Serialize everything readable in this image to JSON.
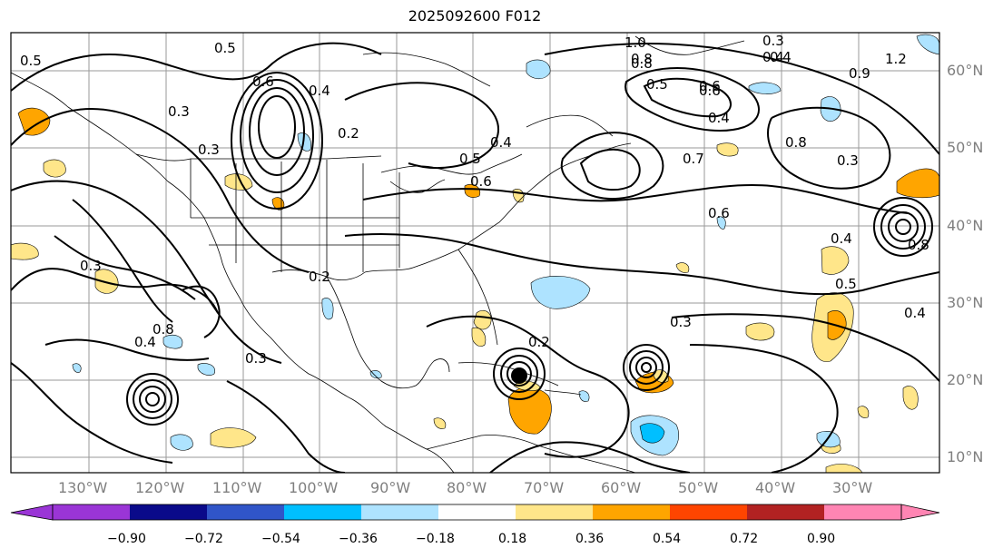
{
  "title": "2025092600 F012",
  "lon_labels": [
    "130°W",
    "120°W",
    "110°W",
    "100°W",
    "90°W",
    "80°W",
    "70°W",
    "60°W",
    "50°W",
    "40°W",
    "30°W"
  ],
  "lat_labels": [
    "60°N",
    "50°N",
    "40°N",
    "30°N",
    "20°N",
    "10°N"
  ],
  "colorbar": {
    "tick_labels": [
      "−0.90",
      "−0.72",
      "−0.54",
      "−0.36",
      "−0.18",
      "0.18",
      "0.36",
      "0.54",
      "0.72",
      "0.90"
    ],
    "colors": [
      "#9a35d6",
      "#0a0a8a",
      "#3055c8",
      "#00bfff",
      "#aee3ff",
      "#ffffff",
      "#ffe68a",
      "#ffa500",
      "#ff4500",
      "#b22222",
      "#ff85b3"
    ]
  },
  "contour_labels": [
    "0.5",
    "0.5",
    "0.6",
    "0.3",
    "0.3",
    "0.4",
    "0.2",
    "0.3",
    "0.2",
    "0.3",
    "0.4",
    "0.5",
    "0.6",
    "0.4",
    "0.8",
    "0.6",
    "0.7",
    "0.6",
    "0.8",
    "1.0",
    "0.8",
    "0.5",
    "0.6",
    "0.4",
    "0.3",
    "0.4",
    "1.2",
    "0.9",
    "0.8",
    "0.3",
    "0.4",
    "0.5",
    "0.3",
    "0.2",
    "0.8",
    "0.4",
    "0.4"
  ],
  "colors": {
    "land_border": "#000000",
    "grid": "#9a9a9a",
    "positive_light": "#ffe68a",
    "positive_mid": "#ffa500",
    "negative_light": "#aee3ff",
    "negative_mid": "#00bfff"
  }
}
